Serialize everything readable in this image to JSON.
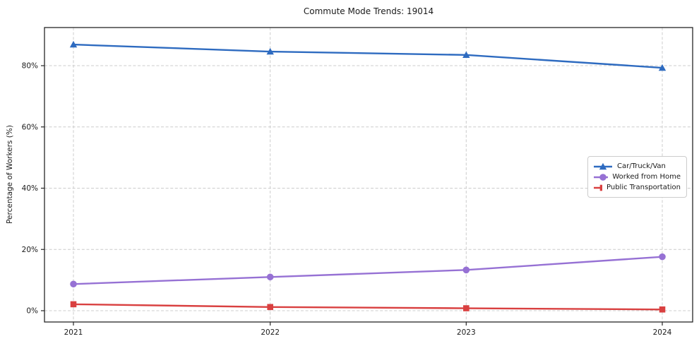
{
  "chart_data": {
    "type": "line",
    "title": "Commute Mode Trends: 19014",
    "xlabel": "",
    "ylabel": "Percentage of Workers (%)",
    "x": [
      "2021",
      "2022",
      "2023",
      "2024"
    ],
    "series": [
      {
        "name": "Car/Truck/Van",
        "color": "#2e6bc0",
        "marker": "triangle",
        "values": [
          86.9,
          84.6,
          83.5,
          79.3
        ]
      },
      {
        "name": "Worked from Home",
        "color": "#9671d4",
        "marker": "circle",
        "values": [
          8.7,
          11.0,
          13.3,
          17.6
        ]
      },
      {
        "name": "Public Transportation",
        "color": "#d94040",
        "marker": "square",
        "values": [
          2.1,
          1.2,
          0.8,
          0.4
        ]
      }
    ],
    "y_ticks": [
      "0%",
      "20%",
      "40%",
      "60%",
      "80%"
    ],
    "y_tick_values": [
      0,
      20,
      40,
      60,
      80
    ],
    "ylim": [
      -3.7,
      92.4
    ],
    "grid": true,
    "grid_style": "dashed",
    "legend_position": "center-right",
    "colors": {
      "spine": "#262626",
      "grid": "#cccccc",
      "tick_label": "#1a1a1a",
      "background": "#ffffff"
    }
  }
}
